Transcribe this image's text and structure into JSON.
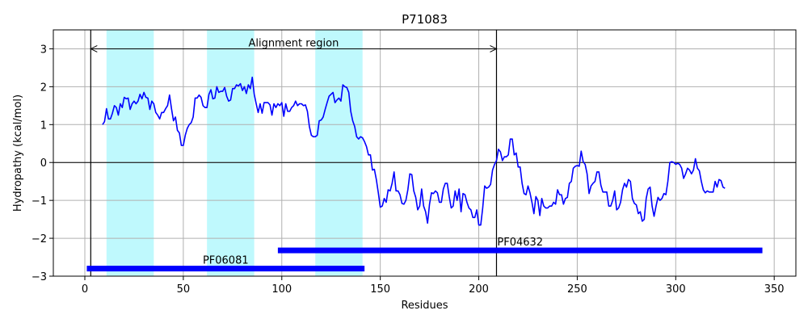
{
  "chart_data": {
    "type": "line",
    "title": "P71083",
    "xlabel": "Residues",
    "ylabel": "Hydropathy (kcal/mol)",
    "xlim": [
      -16,
      361
    ],
    "ylim": [
      -3,
      3.5
    ],
    "xticks": [
      0,
      50,
      100,
      150,
      200,
      250,
      300,
      350
    ],
    "yticks": [
      -3,
      -2,
      -1,
      0,
      1,
      2,
      3
    ],
    "grid": true,
    "series": [
      {
        "color": "#0000ff",
        "points": [
          [
            9,
            1.0
          ],
          [
            10,
            1.08
          ],
          [
            11,
            1.42
          ],
          [
            12,
            1.15
          ],
          [
            13,
            1.15
          ],
          [
            14,
            1.3
          ],
          [
            15,
            1.5
          ],
          [
            16,
            1.45
          ],
          [
            17,
            1.25
          ],
          [
            18,
            1.55
          ],
          [
            19,
            1.45
          ],
          [
            20,
            1.72
          ],
          [
            21,
            1.68
          ],
          [
            22,
            1.7
          ],
          [
            23,
            1.4
          ],
          [
            24,
            1.55
          ],
          [
            25,
            1.62
          ],
          [
            26,
            1.55
          ],
          [
            27,
            1.62
          ],
          [
            28,
            1.8
          ],
          [
            29,
            1.68
          ],
          [
            30,
            1.85
          ],
          [
            31,
            1.72
          ],
          [
            32,
            1.7
          ],
          [
            33,
            1.4
          ],
          [
            34,
            1.62
          ],
          [
            35,
            1.55
          ],
          [
            36,
            1.32
          ],
          [
            37,
            1.25
          ],
          [
            38,
            1.15
          ],
          [
            39,
            1.32
          ],
          [
            40,
            1.32
          ],
          [
            41,
            1.42
          ],
          [
            42,
            1.5
          ],
          [
            43,
            1.78
          ],
          [
            44,
            1.42
          ],
          [
            45,
            1.1
          ],
          [
            46,
            1.2
          ],
          [
            47,
            0.85
          ],
          [
            48,
            0.78
          ],
          [
            49,
            0.45
          ],
          [
            50,
            0.45
          ],
          [
            51,
            0.72
          ],
          [
            52,
            0.9
          ],
          [
            53,
            1.0
          ],
          [
            54,
            1.05
          ],
          [
            55,
            1.2
          ],
          [
            56,
            1.7
          ],
          [
            57,
            1.7
          ],
          [
            58,
            1.78
          ],
          [
            59,
            1.72
          ],
          [
            60,
            1.5
          ],
          [
            61,
            1.45
          ],
          [
            62,
            1.45
          ],
          [
            63,
            1.8
          ],
          [
            64,
            1.92
          ],
          [
            65,
            1.68
          ],
          [
            66,
            1.7
          ],
          [
            67,
            2.0
          ],
          [
            68,
            1.85
          ],
          [
            69,
            1.88
          ],
          [
            70,
            1.88
          ],
          [
            71,
            1.98
          ],
          [
            72,
            1.75
          ],
          [
            73,
            1.62
          ],
          [
            74,
            1.65
          ],
          [
            75,
            1.95
          ],
          [
            76,
            1.95
          ],
          [
            77,
            2.05
          ],
          [
            78,
            2.02
          ],
          [
            79,
            2.08
          ],
          [
            80,
            1.9
          ],
          [
            81,
            2.0
          ],
          [
            82,
            1.82
          ],
          [
            83,
            2.05
          ],
          [
            84,
            1.95
          ],
          [
            85,
            2.25
          ],
          [
            86,
            1.8
          ],
          [
            87,
            1.55
          ],
          [
            88,
            1.32
          ],
          [
            89,
            1.55
          ],
          [
            90,
            1.3
          ],
          [
            91,
            1.58
          ],
          [
            92,
            1.58
          ],
          [
            93,
            1.58
          ],
          [
            94,
            1.52
          ],
          [
            95,
            1.25
          ],
          [
            96,
            1.55
          ],
          [
            97,
            1.45
          ],
          [
            98,
            1.55
          ],
          [
            99,
            1.5
          ],
          [
            100,
            1.58
          ],
          [
            101,
            1.22
          ],
          [
            102,
            1.55
          ],
          [
            103,
            1.35
          ],
          [
            104,
            1.35
          ],
          [
            105,
            1.45
          ],
          [
            106,
            1.5
          ],
          [
            107,
            1.62
          ],
          [
            108,
            1.5
          ],
          [
            109,
            1.55
          ],
          [
            110,
            1.55
          ],
          [
            111,
            1.5
          ],
          [
            112,
            1.52
          ],
          [
            113,
            1.35
          ],
          [
            114,
            0.95
          ],
          [
            115,
            0.72
          ],
          [
            116,
            0.68
          ],
          [
            117,
            0.68
          ],
          [
            118,
            0.72
          ],
          [
            119,
            1.1
          ],
          [
            120,
            1.12
          ],
          [
            121,
            1.2
          ],
          [
            122,
            1.4
          ],
          [
            123,
            1.58
          ],
          [
            124,
            1.75
          ],
          [
            125,
            1.8
          ],
          [
            126,
            1.85
          ],
          [
            127,
            1.58
          ],
          [
            128,
            1.65
          ],
          [
            129,
            1.7
          ],
          [
            130,
            1.62
          ],
          [
            131,
            2.05
          ],
          [
            132,
            2.0
          ],
          [
            133,
            1.98
          ],
          [
            134,
            1.85
          ],
          [
            135,
            1.35
          ],
          [
            136,
            1.1
          ],
          [
            137,
            0.95
          ],
          [
            138,
            0.68
          ],
          [
            139,
            0.62
          ],
          [
            140,
            0.68
          ],
          [
            141,
            0.65
          ],
          [
            142,
            0.55
          ],
          [
            143,
            0.42
          ],
          [
            144,
            0.2
          ],
          [
            145,
            0.2
          ],
          [
            146,
            -0.2
          ],
          [
            147,
            -0.18
          ],
          [
            148,
            -0.45
          ],
          [
            149,
            -0.8
          ],
          [
            150,
            -1.18
          ],
          [
            151,
            -1.15
          ],
          [
            152,
            -0.95
          ],
          [
            153,
            -1.05
          ],
          [
            154,
            -0.72
          ],
          [
            155,
            -0.75
          ],
          [
            156,
            -0.55
          ],
          [
            157,
            -0.25
          ],
          [
            158,
            -0.75
          ],
          [
            159,
            -0.75
          ],
          [
            160,
            -0.85
          ],
          [
            161,
            -1.08
          ],
          [
            162,
            -1.1
          ],
          [
            163,
            -1.0
          ],
          [
            164,
            -0.72
          ],
          [
            165,
            -0.3
          ],
          [
            166,
            -0.32
          ],
          [
            167,
            -0.75
          ],
          [
            168,
            -0.92
          ],
          [
            169,
            -1.25
          ],
          [
            170,
            -1.15
          ],
          [
            171,
            -0.7
          ],
          [
            172,
            -1.15
          ],
          [
            173,
            -1.3
          ],
          [
            174,
            -1.6
          ],
          [
            175,
            -1.1
          ],
          [
            176,
            -0.8
          ],
          [
            177,
            -0.82
          ],
          [
            178,
            -0.75
          ],
          [
            179,
            -0.8
          ],
          [
            180,
            -1.05
          ],
          [
            181,
            -1.05
          ],
          [
            182,
            -0.7
          ],
          [
            183,
            -0.55
          ],
          [
            184,
            -0.55
          ],
          [
            185,
            -0.9
          ],
          [
            186,
            -1.2
          ],
          [
            187,
            -1.15
          ],
          [
            188,
            -0.75
          ],
          [
            189,
            -1.0
          ],
          [
            190,
            -0.7
          ],
          [
            191,
            -1.3
          ],
          [
            192,
            -0.82
          ],
          [
            193,
            -0.85
          ],
          [
            194,
            -1.05
          ],
          [
            195,
            -1.2
          ],
          [
            196,
            -1.25
          ],
          [
            197,
            -1.45
          ],
          [
            198,
            -1.45
          ],
          [
            199,
            -1.25
          ],
          [
            200,
            -1.65
          ],
          [
            201,
            -1.65
          ],
          [
            202,
            -1.2
          ],
          [
            203,
            -0.62
          ],
          [
            204,
            -0.68
          ],
          [
            205,
            -0.65
          ],
          [
            206,
            -0.58
          ],
          [
            207,
            -0.2
          ],
          [
            208,
            -0.05
          ],
          [
            209,
            0.05
          ],
          [
            210,
            0.35
          ],
          [
            211,
            0.28
          ],
          [
            212,
            0.05
          ],
          [
            213,
            0.15
          ],
          [
            214,
            0.15
          ],
          [
            215,
            0.2
          ],
          [
            216,
            0.62
          ],
          [
            217,
            0.62
          ],
          [
            218,
            0.2
          ],
          [
            219,
            0.25
          ],
          [
            220,
            -0.12
          ],
          [
            221,
            -0.12
          ],
          [
            222,
            -0.55
          ],
          [
            223,
            -0.82
          ],
          [
            224,
            -0.85
          ],
          [
            225,
            -0.62
          ],
          [
            226,
            -0.8
          ],
          [
            227,
            -1.05
          ],
          [
            228,
            -1.35
          ],
          [
            229,
            -0.9
          ],
          [
            230,
            -1.0
          ],
          [
            231,
            -1.4
          ],
          [
            232,
            -0.95
          ],
          [
            233,
            -1.15
          ],
          [
            234,
            -1.2
          ],
          [
            235,
            -1.2
          ],
          [
            236,
            -1.15
          ],
          [
            237,
            -1.15
          ],
          [
            238,
            -1.05
          ],
          [
            239,
            -1.1
          ],
          [
            240,
            -0.72
          ],
          [
            241,
            -0.85
          ],
          [
            242,
            -0.85
          ],
          [
            243,
            -1.1
          ],
          [
            244,
            -0.95
          ],
          [
            245,
            -0.92
          ],
          [
            246,
            -0.55
          ],
          [
            247,
            -0.5
          ],
          [
            248,
            -0.15
          ],
          [
            249,
            -0.1
          ],
          [
            250,
            -0.08
          ],
          [
            251,
            -0.1
          ],
          [
            252,
            0.3
          ],
          [
            253,
            0.02
          ],
          [
            254,
            -0.05
          ],
          [
            255,
            -0.3
          ],
          [
            256,
            -0.82
          ],
          [
            257,
            -0.62
          ],
          [
            258,
            -0.55
          ],
          [
            259,
            -0.5
          ],
          [
            260,
            -0.25
          ],
          [
            261,
            -0.25
          ],
          [
            262,
            -0.6
          ],
          [
            263,
            -0.78
          ],
          [
            264,
            -0.78
          ],
          [
            265,
            -0.78
          ],
          [
            266,
            -1.15
          ],
          [
            267,
            -1.15
          ],
          [
            268,
            -1.0
          ],
          [
            269,
            -0.75
          ],
          [
            270,
            -1.25
          ],
          [
            271,
            -1.2
          ],
          [
            272,
            -1.05
          ],
          [
            273,
            -0.72
          ],
          [
            274,
            -0.55
          ],
          [
            275,
            -0.65
          ],
          [
            276,
            -0.45
          ],
          [
            277,
            -0.5
          ],
          [
            278,
            -0.95
          ],
          [
            279,
            -1.08
          ],
          [
            280,
            -1.12
          ],
          [
            281,
            -1.35
          ],
          [
            282,
            -1.3
          ],
          [
            283,
            -1.55
          ],
          [
            284,
            -1.5
          ],
          [
            285,
            -0.95
          ],
          [
            286,
            -0.7
          ],
          [
            287,
            -0.65
          ],
          [
            288,
            -1.15
          ],
          [
            289,
            -1.42
          ],
          [
            290,
            -1.15
          ],
          [
            291,
            -0.92
          ],
          [
            292,
            -1.0
          ],
          [
            293,
            -0.95
          ],
          [
            294,
            -0.82
          ],
          [
            295,
            -0.85
          ],
          [
            296,
            -0.5
          ],
          [
            297,
            0.0
          ],
          [
            298,
            0.02
          ],
          [
            299,
            0.0
          ],
          [
            300,
            -0.05
          ],
          [
            301,
            -0.02
          ],
          [
            302,
            -0.05
          ],
          [
            303,
            -0.15
          ],
          [
            304,
            -0.42
          ],
          [
            305,
            -0.3
          ],
          [
            306,
            -0.15
          ],
          [
            307,
            -0.2
          ],
          [
            308,
            -0.3
          ],
          [
            309,
            -0.2
          ],
          [
            310,
            0.1
          ],
          [
            311,
            -0.15
          ],
          [
            312,
            -0.22
          ],
          [
            313,
            -0.5
          ],
          [
            314,
            -0.72
          ],
          [
            315,
            -0.8
          ],
          [
            316,
            -0.75
          ],
          [
            317,
            -0.78
          ],
          [
            318,
            -0.78
          ],
          [
            319,
            -0.78
          ],
          [
            320,
            -0.5
          ],
          [
            321,
            -0.65
          ],
          [
            322,
            -0.45
          ],
          [
            323,
            -0.48
          ],
          [
            324,
            -0.65
          ],
          [
            325,
            -0.68
          ]
        ]
      }
    ],
    "highlight_regions": [
      [
        11,
        35
      ],
      [
        62,
        86
      ],
      [
        117,
        141
      ]
    ],
    "vertical_lines": [
      3,
      209
    ],
    "alignment_region": {
      "label": "Alignment region",
      "start": 3,
      "end": 209,
      "y": 3.0
    },
    "domains": [
      {
        "label": "PF06081",
        "start": 1,
        "end": 142,
        "y": -2.8,
        "color": "#0000ff"
      },
      {
        "label": "PF04632",
        "start": 98,
        "end": 344,
        "y": -2.32,
        "color": "#0000ff"
      }
    ],
    "colors": {
      "line": "#0000ff",
      "highlight": "#bff9fd",
      "grid": "#b0b0b0",
      "domain": "#0000ff"
    }
  }
}
